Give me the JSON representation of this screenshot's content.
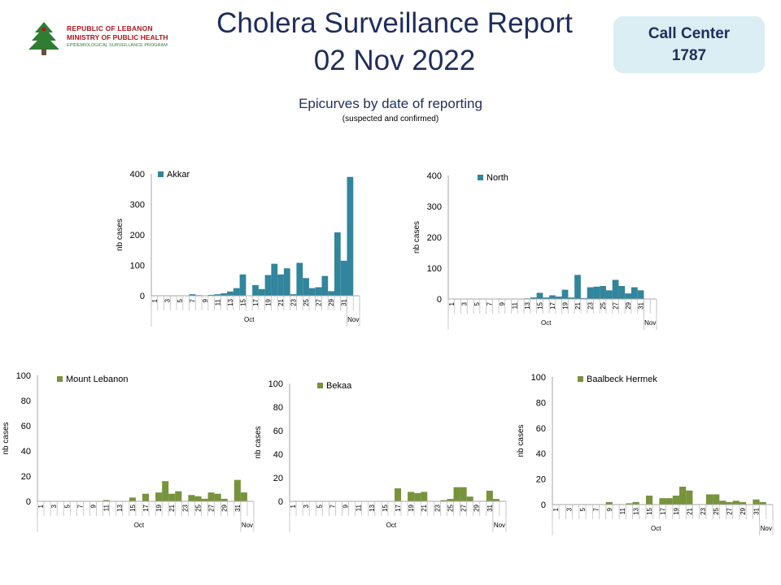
{
  "header": {
    "logo_line1": "REPUBLIC OF LEBANON",
    "logo_line2": "MINISTRY OF PUBLIC HEALTH",
    "logo_line3": "EPIDEMIOLOGICAL SURVEILLANCE PROGRAM",
    "title_line1": "Cholera Surveillance Report",
    "title_line2": "02 Nov 2022",
    "call_center_label": "Call Center",
    "call_center_number": "1787",
    "subtitle": "Epicurves by date of reporting",
    "subnote": "(suspected and confirmed)"
  },
  "colors": {
    "blue": "#31859c",
    "green": "#77933c",
    "title": "#1f2d5c",
    "badge": "#daeef3"
  },
  "chart_data": [
    {
      "type": "bar",
      "legend": "Akkar",
      "ylabel": "nb cases",
      "ylim": [
        0,
        400
      ],
      "yticks": [
        "0",
        "100",
        "200",
        "300",
        "400"
      ],
      "categories": [
        "1",
        "2",
        "3",
        "4",
        "5",
        "6",
        "7",
        "8",
        "9",
        "10",
        "11",
        "12",
        "13",
        "14",
        "15",
        "16",
        "17",
        "18",
        "19",
        "20",
        "21",
        "22",
        "23",
        "24",
        "25",
        "26",
        "27",
        "28",
        "29",
        "30",
        "31",
        "1",
        "2"
      ],
      "tick_labels": [
        "1",
        "3",
        "5",
        "7",
        "9",
        "11",
        "13",
        "15",
        "17",
        "19",
        "21",
        "23",
        "25",
        "27",
        "29",
        "31"
      ],
      "month_labels": [
        "Oct",
        "Nov"
      ],
      "values": [
        0,
        0,
        0,
        0,
        0,
        0,
        5,
        2,
        0,
        3,
        5,
        8,
        14,
        25,
        70,
        0,
        35,
        22,
        68,
        105,
        70,
        90,
        5,
        108,
        58,
        25,
        28,
        65,
        15,
        208,
        115,
        390,
        0
      ]
    },
    {
      "type": "bar",
      "legend": "North",
      "ylabel": "nb cases",
      "ylim": [
        0,
        400
      ],
      "yticks": [
        "0",
        "100",
        "200",
        "300",
        "400"
      ],
      "categories": [
        "1",
        "2",
        "3",
        "4",
        "5",
        "6",
        "7",
        "8",
        "9",
        "10",
        "11",
        "12",
        "13",
        "14",
        "15",
        "16",
        "17",
        "18",
        "19",
        "20",
        "21",
        "22",
        "23",
        "24",
        "25",
        "26",
        "27",
        "28",
        "29",
        "30",
        "31",
        "1",
        "2"
      ],
      "tick_labels": [
        "1",
        "3",
        "5",
        "7",
        "9",
        "11",
        "13",
        "15",
        "17",
        "19",
        "21",
        "23",
        "25",
        "27",
        "29",
        "31"
      ],
      "month_labels": [
        "Oct",
        "Nov"
      ],
      "values": [
        0,
        0,
        0,
        0,
        0,
        0,
        0,
        0,
        0,
        0,
        0,
        0,
        2,
        5,
        20,
        5,
        12,
        8,
        30,
        5,
        78,
        3,
        38,
        40,
        42,
        28,
        62,
        42,
        18,
        38,
        28,
        0,
        0
      ]
    },
    {
      "type": "bar",
      "legend": "Mount Lebanon",
      "ylabel": "nb cases",
      "ylim": [
        0,
        100
      ],
      "yticks": [
        "0",
        "20",
        "40",
        "60",
        "80",
        "100"
      ],
      "categories": [
        "1",
        "2",
        "3",
        "4",
        "5",
        "6",
        "7",
        "8",
        "9",
        "10",
        "11",
        "12",
        "13",
        "14",
        "15",
        "16",
        "17",
        "18",
        "19",
        "20",
        "21",
        "22",
        "23",
        "24",
        "25",
        "26",
        "27",
        "28",
        "29",
        "30",
        "31",
        "1",
        "2"
      ],
      "tick_labels": [
        "1",
        "3",
        "5",
        "7",
        "9",
        "11",
        "13",
        "15",
        "17",
        "19",
        "21",
        "23",
        "25",
        "27",
        "29",
        "31"
      ],
      "month_labels": [
        "Oct",
        "Nov"
      ],
      "values": [
        0,
        0,
        0,
        0,
        0,
        0,
        0,
        0,
        0,
        0,
        1,
        0,
        0,
        0,
        3,
        0,
        6,
        0,
        7,
        16,
        6,
        8,
        0,
        5,
        4,
        2,
        7,
        6,
        2,
        0,
        17,
        7,
        0
      ]
    },
    {
      "type": "bar",
      "legend": "Bekaa",
      "ylabel": "nb cases",
      "ylim": [
        0,
        100
      ],
      "yticks": [
        "0",
        "20",
        "40",
        "60",
        "80",
        "100"
      ],
      "categories": [
        "1",
        "2",
        "3",
        "4",
        "5",
        "6",
        "7",
        "8",
        "9",
        "10",
        "11",
        "12",
        "13",
        "14",
        "15",
        "16",
        "17",
        "18",
        "19",
        "20",
        "21",
        "22",
        "23",
        "24",
        "25",
        "26",
        "27",
        "28",
        "29",
        "30",
        "31",
        "1",
        "2"
      ],
      "tick_labels": [
        "1",
        "3",
        "5",
        "7",
        "9",
        "11",
        "13",
        "15",
        "17",
        "19",
        "21",
        "23",
        "25",
        "27",
        "29",
        "31"
      ],
      "month_labels": [
        "Oct",
        "Nov"
      ],
      "values": [
        0,
        0,
        0,
        0,
        0,
        0,
        0,
        0,
        0,
        0,
        0,
        0,
        0,
        0,
        0,
        0,
        11,
        0,
        8,
        7,
        8,
        0,
        0,
        1,
        2,
        12,
        12,
        4,
        0,
        0,
        9,
        2,
        0
      ]
    },
    {
      "type": "bar",
      "legend": "Baalbeck Hermek",
      "ylabel": "nb cases",
      "ylim": [
        0,
        100
      ],
      "yticks": [
        "0",
        "20",
        "40",
        "60",
        "80",
        "100"
      ],
      "categories": [
        "1",
        "2",
        "3",
        "4",
        "5",
        "6",
        "7",
        "8",
        "9",
        "10",
        "11",
        "12",
        "13",
        "14",
        "15",
        "16",
        "17",
        "18",
        "19",
        "20",
        "21",
        "22",
        "23",
        "24",
        "25",
        "26",
        "27",
        "28",
        "29",
        "30",
        "31",
        "1",
        "2"
      ],
      "tick_labels": [
        "1",
        "3",
        "5",
        "7",
        "9",
        "11",
        "13",
        "15",
        "17",
        "19",
        "21",
        "23",
        "25",
        "27",
        "29",
        "31"
      ],
      "month_labels": [
        "Oct",
        "Nov"
      ],
      "values": [
        0,
        0,
        0,
        0,
        0,
        0,
        0,
        0,
        2,
        0,
        0,
        1,
        2,
        0,
        7,
        0,
        5,
        5,
        7,
        14,
        11,
        0,
        0,
        8,
        8,
        3,
        2,
        3,
        2,
        0,
        4,
        2,
        0
      ]
    }
  ]
}
